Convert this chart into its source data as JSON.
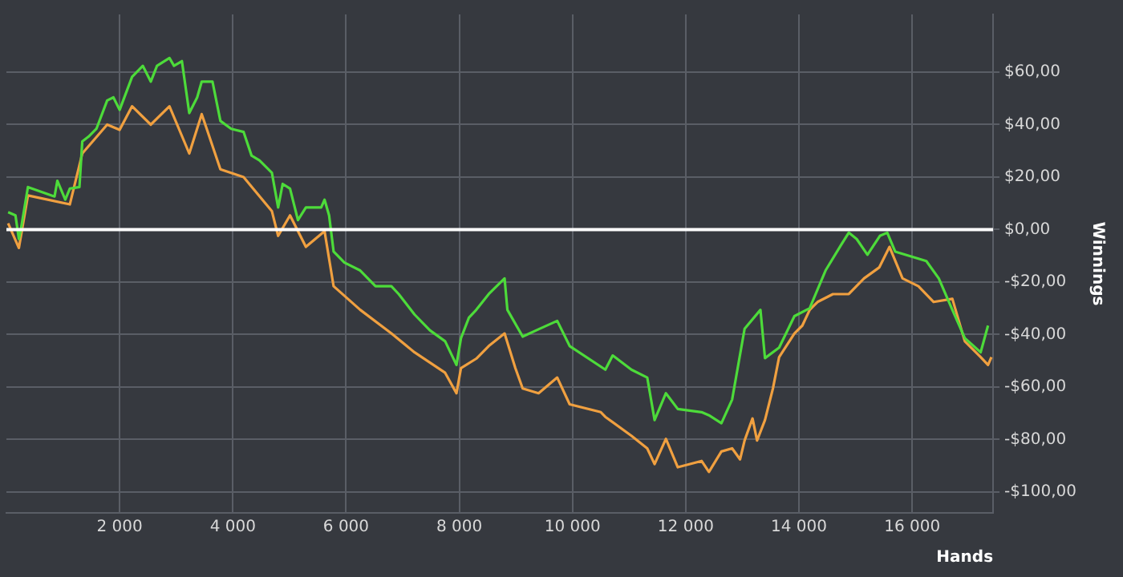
{
  "chart_data": {
    "type": "line",
    "xlabel": "Hands",
    "ylabel": "Winnings",
    "xlim": [
      0,
      17430
    ],
    "ylim": [
      -108,
      82
    ],
    "xticks": [
      {
        "value": 2000,
        "label": "2 000"
      },
      {
        "value": 4000,
        "label": "4 000"
      },
      {
        "value": 6000,
        "label": "6 000"
      },
      {
        "value": 8000,
        "label": "8 000"
      },
      {
        "value": 10000,
        "label": "10 000"
      },
      {
        "value": 12000,
        "label": "12 000"
      },
      {
        "value": 14000,
        "label": "14 000"
      },
      {
        "value": 16000,
        "label": "16 000"
      }
    ],
    "yticks": [
      {
        "value": -100,
        "label": "-$100,00"
      },
      {
        "value": -80,
        "label": "-$80,00"
      },
      {
        "value": -60,
        "label": "-$60,00"
      },
      {
        "value": -40,
        "label": "-$40,00"
      },
      {
        "value": -20,
        "label": "-$20,00"
      },
      {
        "value": 0,
        "label": "$0,00"
      },
      {
        "value": 20,
        "label": "$20,00"
      },
      {
        "value": 40,
        "label": "$40,00"
      },
      {
        "value": 60,
        "label": "$60,00"
      }
    ],
    "grid": true,
    "marker": "none",
    "line_style": "solid",
    "ref_lines": [
      {
        "axis": "y",
        "value": 0,
        "color": "#ffffff"
      }
    ],
    "series": [
      {
        "color": "#4ddb3a",
        "x": [
          30,
          160,
          220,
          250,
          380,
          850,
          900,
          1040,
          1120,
          1290,
          1340,
          1450,
          1590,
          1780,
          1890,
          2000,
          2220,
          2410,
          2550,
          2660,
          2880,
          2960,
          3100,
          3230,
          3370,
          3450,
          3640,
          3780,
          3970,
          4190,
          4330,
          4470,
          4690,
          4800,
          4880,
          5010,
          5150,
          5290,
          5560,
          5620,
          5700,
          5780,
          5970,
          6250,
          6520,
          6800,
          6930,
          7210,
          7480,
          7750,
          7950,
          8030,
          8170,
          8300,
          8520,
          8800,
          8850,
          9120,
          9400,
          9730,
          9950,
          10580,
          10710,
          11040,
          11320,
          11450,
          11650,
          11860,
          12280,
          12410,
          12630,
          12820,
          13040,
          13320,
          13400,
          13650,
          13920,
          14190,
          14470,
          14740,
          14880,
          15020,
          15210,
          15430,
          15560,
          15700,
          15970,
          16250,
          16470,
          16710,
          16930,
          17210,
          17340
        ],
        "values": [
          6.6,
          5.4,
          -3.6,
          -0.6,
          16.2,
          12.6,
          18.6,
          11.4,
          15.6,
          16.2,
          33.6,
          35.4,
          38.4,
          49.2,
          50.4,
          45.6,
          58.2,
          62.4,
          56.4,
          62.4,
          65.4,
          62.4,
          64.2,
          44.4,
          50.4,
          56.4,
          56.4,
          41.4,
          38.4,
          37.2,
          28.2,
          26.4,
          21.6,
          8.4,
          17.4,
          15.6,
          3.6,
          8.4,
          8.4,
          11.4,
          5.4,
          -8.4,
          -12.6,
          -15.6,
          -21.6,
          -21.6,
          -24.6,
          -32.4,
          -38.4,
          -42.6,
          -51.6,
          -41.4,
          -33.6,
          -30.6,
          -24.6,
          -18.6,
          -30.6,
          -40.8,
          -38,
          -34.8,
          -44.4,
          -53.4,
          -48,
          -53.4,
          -56.4,
          -72.6,
          -62.4,
          -68.4,
          -69.6,
          -70.8,
          -73.8,
          -64.8,
          -37.8,
          -30.6,
          -49,
          -45,
          -33,
          -30,
          -15.6,
          -6,
          -1.2,
          -3.6,
          -9.6,
          -2.4,
          -1.2,
          -8.4,
          -10.2,
          -12,
          -18.6,
          -30.6,
          -41.4,
          -46.8,
          -36.6
        ]
      },
      {
        "color": "#f0a040",
        "x": [
          30,
          220,
          380,
          1120,
          1340,
          1780,
          2000,
          2220,
          2550,
          2880,
          3230,
          3450,
          3780,
          4190,
          4690,
          4800,
          5010,
          5290,
          5620,
          5780,
          6250,
          6800,
          7210,
          7750,
          7950,
          8030,
          8300,
          8520,
          8800,
          8990,
          9120,
          9400,
          9730,
          9950,
          10500,
          10580,
          11040,
          11320,
          11450,
          11650,
          11860,
          12280,
          12410,
          12630,
          12820,
          12960,
          13040,
          13180,
          13260,
          13400,
          13540,
          13650,
          13920,
          14060,
          14190,
          14330,
          14600,
          14880,
          15150,
          15420,
          15600,
          15830,
          16110,
          16380,
          16710,
          16930,
          17210,
          17340,
          17400
        ],
        "values": [
          2.4,
          -7,
          13,
          9.6,
          29,
          40,
          38,
          47,
          40,
          47,
          29,
          44,
          23,
          20,
          7,
          -2.4,
          5.4,
          -6.6,
          -0.6,
          -21.6,
          -30.6,
          -39.6,
          -46.8,
          -54.6,
          -62.4,
          -52.8,
          -49.2,
          -44.4,
          -39.6,
          -52.8,
          -60.6,
          -62.4,
          -56.4,
          -66.6,
          -69.6,
          -71.4,
          -78.6,
          -83.4,
          -89.4,
          -79.8,
          -90.6,
          -88.2,
          -92.4,
          -84.6,
          -83.4,
          -87.6,
          -80.4,
          -72,
          -80.4,
          -72.6,
          -60.6,
          -48.6,
          -39.6,
          -36.6,
          -30.6,
          -27.6,
          -24.6,
          -24.6,
          -18.6,
          -14.4,
          -6.6,
          -18.6,
          -21.6,
          -27.6,
          -26.4,
          -42.6,
          -48.6,
          -51.6,
          -48.6
        ]
      }
    ]
  }
}
